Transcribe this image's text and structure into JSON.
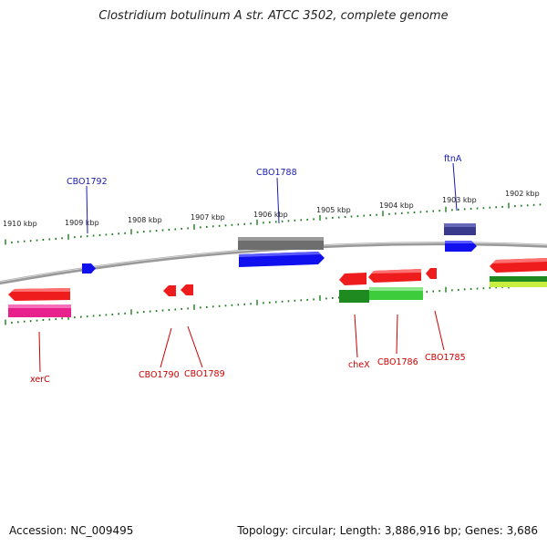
{
  "title": "Clostridium botulinum A str. ATCC 3502, complete genome",
  "footer": {
    "accession": "Accession: NC_009495",
    "topology": "Topology: circular; Length: 3,886,916 bp; Genes: 3,686"
  },
  "colors": {
    "backbone": "#8c8c8c",
    "tick": "#1f7a1f",
    "forward_label": "#1a1ab0",
    "reverse_label": "#cc0000",
    "red": "#ee1c1c",
    "blue": "#1010ee",
    "gray": "#707070",
    "navy": "#3a3a8c",
    "magenta": "#e8208c",
    "green": "#2ea82e",
    "lightgreen": "#33cc33",
    "yellowgreen": "#c8ee40"
  },
  "scale_labels": [
    "1910 kbp",
    "1909 kbp",
    "1908 kbp",
    "1907 kbp",
    "1906 kbp",
    "1905 kbp",
    "1904 kbp",
    "1903 kbp",
    "1902 kbp"
  ],
  "forward_labels": [
    "CBO1792",
    "CBO1788",
    "ftnA"
  ],
  "reverse_labels": [
    "xerC",
    "CBO1790",
    "CBO1789",
    "cheX",
    "CBO1786",
    "CBO1785"
  ]
}
